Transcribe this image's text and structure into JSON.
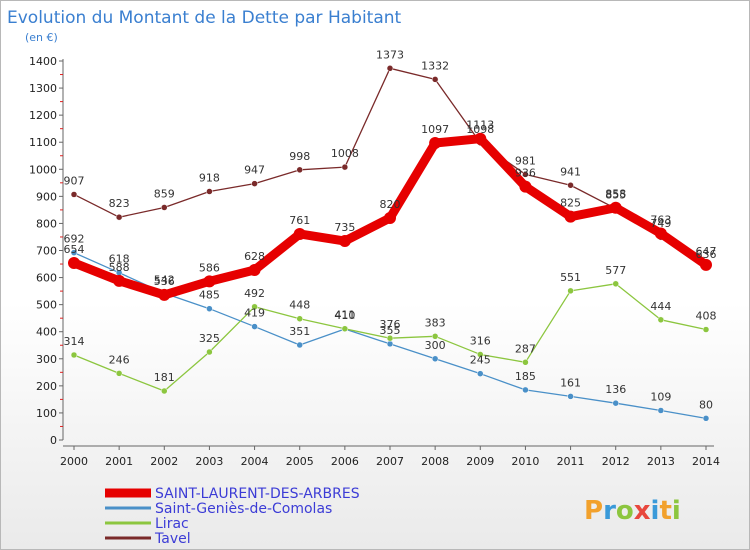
{
  "title": "Evolution du Montant de la Dette par Habitant",
  "subtitle": "(en €)",
  "logo": {
    "text": "Proxiti",
    "colors": [
      "#f2a12c",
      "#3a9ad9",
      "#8cc63f",
      "#e8473d",
      "#3a9ad9",
      "#f2a12c",
      "#8cc63f"
    ]
  },
  "chart_data": {
    "type": "line",
    "x": [
      2000,
      2001,
      2002,
      2003,
      2004,
      2005,
      2006,
      2007,
      2008,
      2009,
      2010,
      2011,
      2012,
      2013,
      2014
    ],
    "ylim": [
      0,
      1400
    ],
    "yticks": [
      0,
      100,
      200,
      300,
      400,
      500,
      600,
      700,
      800,
      900,
      1000,
      1100,
      1200,
      1300,
      1400
    ],
    "grid": false,
    "legend_position": "bottom-left",
    "series": [
      {
        "name": "SAINT-LAURENT-DES-ARBRES",
        "color": "#e60000",
        "width": 9,
        "values": [
          654,
          588,
          536,
          586,
          628,
          761,
          735,
          820,
          1097,
          1113,
          936,
          825,
          858,
          763,
          647
        ]
      },
      {
        "name": "Saint-Geniès-de-Comolas",
        "color": "#4a90c8",
        "width": 1.3,
        "values": [
          692,
          618,
          542,
          485,
          419,
          351,
          410,
          355,
          300,
          245,
          185,
          161,
          136,
          109,
          80
        ]
      },
      {
        "name": "Lirac",
        "color": "#8cc63f",
        "width": 1.3,
        "values": [
          314,
          246,
          181,
          325,
          492,
          448,
          411,
          376,
          383,
          316,
          287,
          551,
          577,
          444,
          408
        ]
      },
      {
        "name": "Tavel",
        "color": "#7a2a2a",
        "width": 1.3,
        "values": [
          907,
          823,
          859,
          918,
          947,
          998,
          1008,
          1373,
          1332,
          1098,
          981,
          941,
          855,
          749,
          636
        ]
      }
    ]
  }
}
